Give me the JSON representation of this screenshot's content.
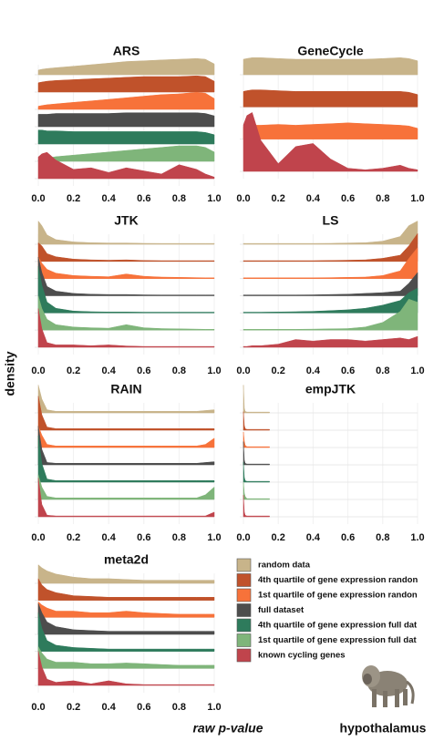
{
  "chart_data": [
    {
      "type": "ridgeline",
      "title": "ARS",
      "xlim": [
        0,
        1
      ],
      "xticks": [
        {
          "value": 0,
          "label": "0.0"
        },
        0.2,
        0.4,
        0.6,
        0.8,
        {
          "value": 1,
          "label": "1.0"
        }
      ],
      "x": [
        0,
        0.02,
        0.05,
        0.1,
        0.2,
        0.3,
        0.4,
        0.5,
        0.6,
        0.7,
        0.8,
        0.9,
        0.95,
        1
      ],
      "series": [
        {
          "values": [
            0.3,
            0.35,
            0.4,
            0.45,
            0.55,
            0.65,
            0.75,
            0.85,
            0.9,
            0.95,
            1.0,
            1.05,
            1.0,
            0.7
          ]
        },
        {
          "values": [
            0.6,
            0.65,
            0.7,
            0.75,
            0.8,
            0.85,
            0.9,
            0.95,
            1.0,
            1.0,
            1.0,
            1.05,
            1.0,
            0.7
          ]
        },
        {
          "values": [
            0.2,
            0.25,
            0.3,
            0.35,
            0.45,
            0.55,
            0.65,
            0.75,
            0.85,
            0.95,
            1.0,
            1.1,
            1.05,
            0.7
          ]
        },
        {
          "values": [
            0.8,
            0.8,
            0.8,
            0.85,
            0.85,
            0.85,
            0.85,
            0.9,
            0.9,
            0.9,
            0.9,
            0.9,
            0.85,
            0.7
          ]
        },
        {
          "values": [
            0.9,
            0.9,
            0.85,
            0.85,
            0.8,
            0.8,
            0.8,
            0.8,
            0.8,
            0.8,
            0.8,
            0.8,
            0.75,
            0.6
          ]
        },
        {
          "values": [
            0.1,
            0.15,
            0.2,
            0.3,
            0.4,
            0.5,
            0.6,
            0.7,
            0.8,
            0.9,
            1.0,
            1.0,
            0.9,
            0.6
          ]
        },
        {
          "values": [
            1.4,
            1.6,
            1.7,
            1.2,
            0.6,
            0.7,
            0.4,
            0.7,
            0.5,
            0.3,
            0.9,
            0.6,
            0.3,
            0.1
          ]
        }
      ]
    },
    {
      "type": "ridgeline",
      "title": "GeneCycle",
      "xlim": [
        0,
        1
      ],
      "xticks": [
        {
          "value": 0,
          "label": "0.0"
        },
        0.2,
        0.4,
        0.6,
        0.8,
        {
          "value": 1,
          "label": "1.0"
        }
      ],
      "x": [
        0,
        0.02,
        0.05,
        0.1,
        0.2,
        0.3,
        0.4,
        0.5,
        0.6,
        0.7,
        0.8,
        0.9,
        0.95,
        1
      ],
      "series": [
        {
          "values": [
            1.0,
            1.05,
            1.1,
            1.1,
            1.05,
            1.0,
            1.0,
            1.0,
            1.0,
            1.0,
            1.05,
            1.1,
            1.05,
            0.9
          ]
        },
        {
          "values": [
            1.0,
            1.05,
            1.1,
            1.1,
            1.05,
            1.0,
            1.0,
            1.0,
            1.0,
            1.0,
            1.0,
            1.0,
            0.95,
            0.8
          ]
        },
        {
          "values": [
            0.8,
            0.8,
            0.9,
            0.9,
            0.95,
            0.9,
            0.95,
            1.0,
            1.05,
            1.0,
            0.95,
            0.9,
            0.85,
            0.7
          ]
        },
        {
          "values": [
            null,
            null,
            null,
            null,
            null,
            null,
            null,
            null,
            null,
            null,
            null,
            null,
            null,
            null
          ]
        },
        {
          "values": [
            null,
            null,
            null,
            null,
            null,
            null,
            null,
            null,
            null,
            null,
            null,
            null,
            null,
            null
          ]
        },
        {
          "values": [
            null,
            null,
            null,
            null,
            null,
            null,
            null,
            null,
            null,
            null,
            null,
            null,
            null,
            null
          ]
        },
        {
          "values": [
            3.0,
            3.6,
            3.8,
            2.0,
            0.5,
            1.6,
            1.8,
            0.8,
            0.2,
            0.1,
            0.2,
            0.4,
            0.2,
            0.1
          ]
        }
      ]
    },
    {
      "type": "ridgeline",
      "title": "JTK",
      "xlim": [
        0,
        1
      ],
      "xticks": [
        {
          "value": 0,
          "label": "0.0"
        },
        0.2,
        0.4,
        0.6,
        0.8,
        {
          "value": 1,
          "label": "1.0"
        }
      ],
      "x": [
        0,
        0.02,
        0.05,
        0.1,
        0.2,
        0.3,
        0.4,
        0.5,
        0.6,
        0.7,
        0.8,
        0.9,
        0.95,
        1
      ],
      "series": [
        {
          "values": [
            1.5,
            1.2,
            0.6,
            0.3,
            0.15,
            0.1,
            0.08,
            0.08,
            0.06,
            0.05,
            0.05,
            0.05,
            0.05,
            0.05
          ]
        },
        {
          "values": [
            1.2,
            1.0,
            0.5,
            0.3,
            0.15,
            0.1,
            0.08,
            0.1,
            0.06,
            0.05,
            0.05,
            0.05,
            0.05,
            0.05
          ]
        },
        {
          "values": [
            1.4,
            1.0,
            0.6,
            0.35,
            0.2,
            0.15,
            0.12,
            0.3,
            0.15,
            0.1,
            0.08,
            0.06,
            0.05,
            0.05
          ]
        },
        {
          "values": [
            2.5,
            1.5,
            0.6,
            0.3,
            0.15,
            0.1,
            0.08,
            0.08,
            0.06,
            0.05,
            0.05,
            0.05,
            0.05,
            0.05
          ]
        },
        {
          "values": [
            3.0,
            1.8,
            0.7,
            0.3,
            0.12,
            0.08,
            0.06,
            0.06,
            0.05,
            0.05,
            0.05,
            0.05,
            0.05,
            0.05
          ]
        },
        {
          "values": [
            2.2,
            1.4,
            0.7,
            0.35,
            0.2,
            0.15,
            0.12,
            0.35,
            0.15,
            0.1,
            0.08,
            0.06,
            0.05,
            0.05
          ]
        },
        {
          "values": [
            2.5,
            1.2,
            0.3,
            0.15,
            0.15,
            0.1,
            0.15,
            0.08,
            0.05,
            0.05,
            0.05,
            0.05,
            0.05,
            0.05
          ]
        }
      ]
    },
    {
      "type": "ridgeline",
      "title": "LS",
      "xlim": [
        0,
        1
      ],
      "xticks": [
        {
          "value": 0,
          "label": "0.0"
        },
        0.2,
        0.4,
        0.6,
        0.8,
        {
          "value": 1,
          "label": "1.0"
        }
      ],
      "x": [
        0,
        0.02,
        0.05,
        0.1,
        0.2,
        0.3,
        0.4,
        0.5,
        0.6,
        0.7,
        0.8,
        0.9,
        0.95,
        1
      ],
      "series": [
        {
          "values": [
            0.05,
            0.05,
            0.05,
            0.05,
            0.05,
            0.05,
            0.05,
            0.06,
            0.08,
            0.1,
            0.2,
            0.5,
            1.2,
            1.5
          ]
        },
        {
          "values": [
            0.05,
            0.05,
            0.05,
            0.05,
            0.05,
            0.05,
            0.05,
            0.06,
            0.08,
            0.1,
            0.2,
            0.4,
            1.0,
            1.8
          ]
        },
        {
          "values": [
            0.05,
            0.05,
            0.05,
            0.05,
            0.05,
            0.05,
            0.05,
            0.06,
            0.08,
            0.1,
            0.2,
            0.5,
            1.3,
            2.0
          ]
        },
        {
          "values": [
            0.05,
            0.05,
            0.05,
            0.05,
            0.05,
            0.05,
            0.06,
            0.08,
            0.1,
            0.15,
            0.2,
            0.3,
            0.8,
            1.5
          ]
        },
        {
          "values": [
            0.05,
            0.05,
            0.05,
            0.05,
            0.06,
            0.08,
            0.1,
            0.15,
            0.2,
            0.3,
            0.5,
            0.8,
            1.3,
            1.6
          ]
        },
        {
          "values": [
            0.05,
            0.05,
            0.05,
            0.05,
            0.05,
            0.05,
            0.06,
            0.08,
            0.1,
            0.2,
            0.5,
            1.2,
            2.0,
            1.8
          ]
        },
        {
          "values": [
            0.05,
            0.05,
            0.1,
            0.1,
            0.2,
            0.5,
            0.4,
            0.5,
            0.5,
            0.4,
            0.5,
            0.6,
            0.5,
            0.7
          ]
        }
      ]
    },
    {
      "type": "ridgeline",
      "title": "RAIN",
      "xlim": [
        0,
        1
      ],
      "xticks": [
        {
          "value": 0,
          "label": "0.0"
        },
        0.2,
        0.4,
        0.6,
        0.8,
        {
          "value": 1,
          "label": "1.0"
        }
      ],
      "x": [
        0,
        0.02,
        0.05,
        0.1,
        0.2,
        0.3,
        0.4,
        0.5,
        0.6,
        0.7,
        0.8,
        0.9,
        0.95,
        1
      ],
      "series": [
        {
          "values": [
            1.8,
            0.9,
            0.2,
            0.1,
            0.1,
            0.1,
            0.1,
            0.1,
            0.1,
            0.1,
            0.1,
            0.1,
            0.15,
            0.2
          ]
        },
        {
          "values": [
            2.2,
            1.0,
            0.2,
            0.1,
            0.1,
            0.1,
            0.1,
            0.1,
            0.1,
            0.1,
            0.1,
            0.1,
            0.1,
            0.1
          ]
        },
        {
          "values": [
            1.4,
            0.8,
            0.2,
            0.1,
            0.1,
            0.1,
            0.1,
            0.1,
            0.1,
            0.1,
            0.1,
            0.1,
            0.2,
            0.6
          ]
        },
        {
          "values": [
            2.5,
            1.0,
            0.15,
            0.1,
            0.1,
            0.1,
            0.1,
            0.1,
            0.1,
            0.1,
            0.1,
            0.1,
            0.15,
            0.2
          ]
        },
        {
          "values": [
            3.0,
            1.2,
            0.2,
            0.1,
            0.1,
            0.1,
            0.1,
            0.1,
            0.1,
            0.1,
            0.1,
            0.1,
            0.1,
            0.1
          ]
        },
        {
          "values": [
            1.6,
            0.8,
            0.2,
            0.1,
            0.1,
            0.1,
            0.1,
            0.1,
            0.1,
            0.1,
            0.1,
            0.1,
            0.3,
            0.8
          ]
        },
        {
          "values": [
            2.5,
            0.8,
            0.1,
            0.05,
            0.05,
            0.05,
            0.05,
            0.05,
            0.05,
            0.05,
            0.05,
            0.05,
            0.05,
            0.3
          ]
        }
      ]
    },
    {
      "type": "ridgeline",
      "title": "empJTK",
      "xlim": [
        0,
        1
      ],
      "xticks": [
        {
          "value": 0,
          "label": "0.0"
        },
        0.2,
        0.4,
        0.6,
        0.8,
        {
          "value": 1,
          "label": "1.0"
        }
      ],
      "x": [
        0,
        0.005,
        0.01,
        0.02,
        0.05,
        0.1,
        0.15
      ],
      "series": [
        {
          "values": [
            1.8,
            0.3,
            0.1,
            0.05,
            0.05,
            0.05,
            0.05
          ]
        },
        {
          "values": [
            1.2,
            0.3,
            0.1,
            0.05,
            0.05,
            0.05,
            0.05
          ]
        },
        {
          "values": [
            1.0,
            0.4,
            0.15,
            0.05,
            0.05,
            0.05,
            0.05
          ]
        },
        {
          "values": [
            1.5,
            0.3,
            0.1,
            0.05,
            0.05,
            0.05,
            0.05
          ]
        },
        {
          "values": [
            1.3,
            0.3,
            0.1,
            0.05,
            0.05,
            0.05,
            0.05
          ]
        },
        {
          "values": [
            1.1,
            0.4,
            0.2,
            0.05,
            0.05,
            0.05,
            0.05
          ]
        },
        {
          "values": [
            1.4,
            0.3,
            0.1,
            0.05,
            0.05,
            0.05,
            0.05
          ]
        }
      ]
    },
    {
      "type": "ridgeline",
      "title": "meta2d",
      "xlim": [
        0,
        1
      ],
      "xticks": [
        {
          "value": 0,
          "label": "0.0"
        },
        0.2,
        0.4,
        0.6,
        0.8,
        {
          "value": 1,
          "label": "1.0"
        }
      ],
      "x": [
        0,
        0.02,
        0.05,
        0.1,
        0.2,
        0.3,
        0.4,
        0.5,
        0.6,
        0.7,
        0.8,
        0.9,
        0.95,
        1
      ],
      "series": [
        {
          "values": [
            1.2,
            1.0,
            0.8,
            0.6,
            0.4,
            0.3,
            0.3,
            0.25,
            0.2,
            0.2,
            0.2,
            0.2,
            0.2,
            0.2
          ]
        },
        {
          "values": [
            1.4,
            1.0,
            0.7,
            0.5,
            0.3,
            0.25,
            0.2,
            0.2,
            0.2,
            0.2,
            0.2,
            0.2,
            0.2,
            0.2
          ]
        },
        {
          "values": [
            1.0,
            0.8,
            0.6,
            0.4,
            0.4,
            0.3,
            0.3,
            0.4,
            0.3,
            0.25,
            0.2,
            0.2,
            0.2,
            0.2
          ]
        },
        {
          "values": [
            2.0,
            1.4,
            0.8,
            0.5,
            0.3,
            0.25,
            0.2,
            0.2,
            0.2,
            0.2,
            0.2,
            0.2,
            0.2,
            0.2
          ]
        },
        {
          "values": [
            2.5,
            1.5,
            0.7,
            0.4,
            0.25,
            0.2,
            0.15,
            0.15,
            0.15,
            0.15,
            0.15,
            0.15,
            0.15,
            0.15
          ]
        },
        {
          "values": [
            1.4,
            1.0,
            0.6,
            0.4,
            0.4,
            0.3,
            0.3,
            0.35,
            0.3,
            0.25,
            0.2,
            0.2,
            0.2,
            0.2
          ]
        },
        {
          "values": [
            2.2,
            1.2,
            0.4,
            0.2,
            0.3,
            0.1,
            0.3,
            0.1,
            0.05,
            0.05,
            0.05,
            0.05,
            0.05,
            0.05
          ]
        }
      ]
    }
  ],
  "legend": {
    "series": [
      {
        "name": "random data",
        "color": "#c8b48a"
      },
      {
        "name": "4th quartile of gene expression randon",
        "color": "#c0522b"
      },
      {
        "name": "1st quartile of gene expression randon",
        "color": "#f7723a"
      },
      {
        "name": "full dataset",
        "color": "#4d4d4d"
      },
      {
        "name": "4th quartile of gene expression full dat",
        "color": "#2e7b5c"
      },
      {
        "name": "1st quartile of gene expression full dat",
        "color": "#7fb57a"
      },
      {
        "name": "known cycling genes",
        "color": "#c0444c"
      }
    ]
  },
  "ylabel": "density",
  "xlabel": "raw p-value",
  "caption": "hypothalamus"
}
